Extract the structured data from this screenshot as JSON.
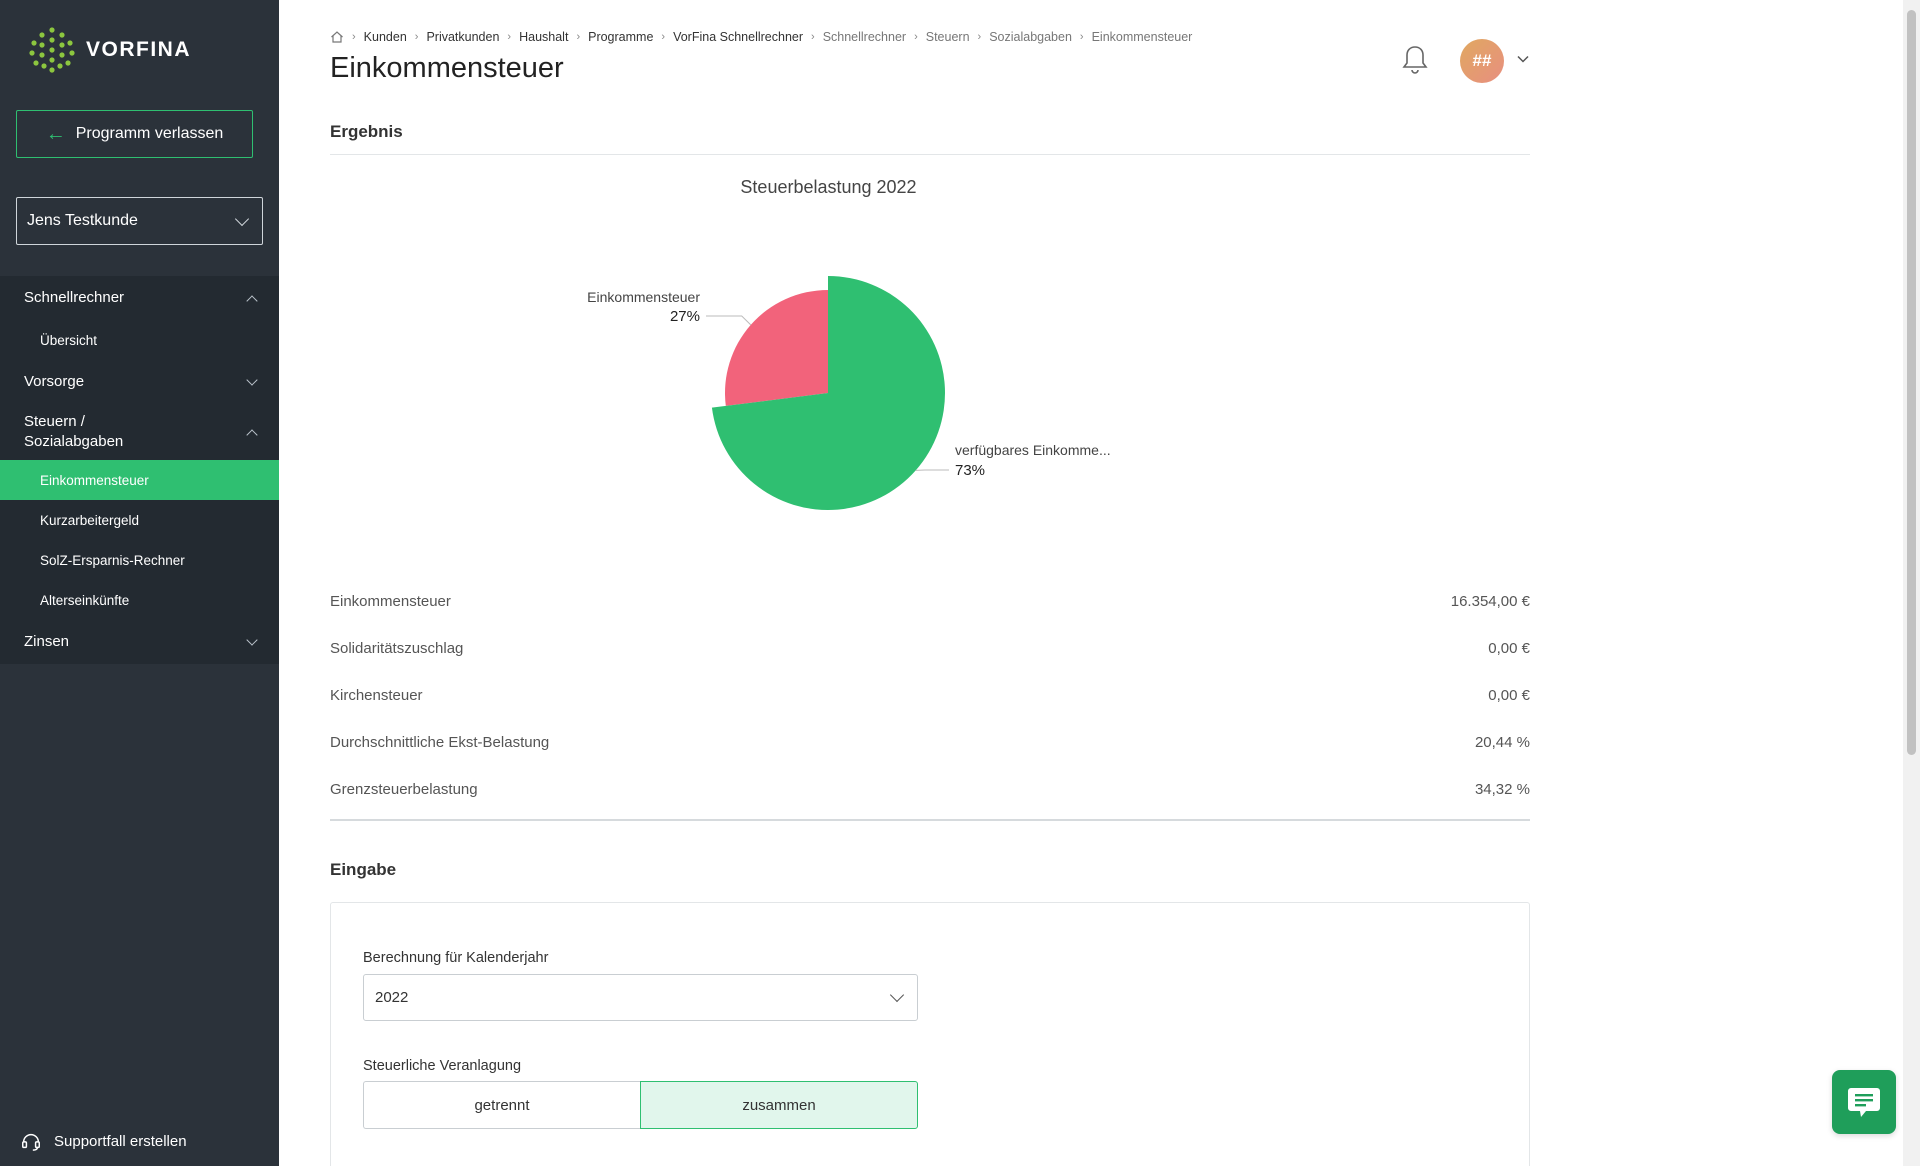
{
  "sidebar": {
    "brand": "VORFINA",
    "leave_button": "Programm verlassen",
    "customer": "Jens Testkunde",
    "groups": [
      {
        "label": "Schnellrechner",
        "items": [
          "Übersicht"
        ]
      },
      {
        "label": "Vorsorge",
        "items": []
      },
      {
        "label": "Steuern /\nSozialabgaben",
        "items": [
          "Einkommensteuer",
          "Kurzarbeitergeld",
          "SolZ-Ersparnis-Rechner",
          "Alterseinkünfte"
        ]
      },
      {
        "label": "Zinsen",
        "items": []
      }
    ],
    "active_item": "Einkommensteuer",
    "support": "Supportfall erstellen"
  },
  "breadcrumb": [
    "Kunden",
    "Privatkunden",
    "Haushalt",
    "Programme",
    "VorFina Schnellrechner",
    "Schnellrechner",
    "Steuern",
    "Sozialabgaben",
    "Einkommensteuer"
  ],
  "header": {
    "title": "Einkommensteuer",
    "avatar_initials": "##"
  },
  "result": {
    "section_title": "Ergebnis",
    "rows": [
      {
        "label": "Einkommensteuer",
        "value": "16.354,00 €"
      },
      {
        "label": "Solidaritätszuschlag",
        "value": "0,00 €"
      },
      {
        "label": "Kirchensteuer",
        "value": "0,00 €"
      },
      {
        "label": "Durchschnittliche Ekst-Belastung",
        "value": "20,44 %"
      },
      {
        "label": "Grenzsteuerbelastung",
        "value": "34,32 %"
      }
    ]
  },
  "input": {
    "section_title": "Eingabe",
    "year_label": "Berechnung für Kalenderjahr",
    "year_value": "2022",
    "assessment_label": "Steuerliche Veranlagung",
    "assessment_options": [
      "getrennt",
      "zusammen"
    ],
    "assessment_selected": "zusammen"
  },
  "chart_data": {
    "type": "pie",
    "title": "Steuerbelastung 2022",
    "slices": [
      {
        "label": "Einkommensteuer",
        "value": 27,
        "display": "27%",
        "color": "#f2637b"
      },
      {
        "label": "verfügbares Einkomme...",
        "value": 73,
        "display": "73%",
        "color": "#2fbf71"
      }
    ]
  },
  "colors": {
    "sidebar_bg": "#2b323a",
    "accent": "#2fbf71",
    "pie_tax": "#f2637b",
    "pie_income": "#2fbf71"
  }
}
